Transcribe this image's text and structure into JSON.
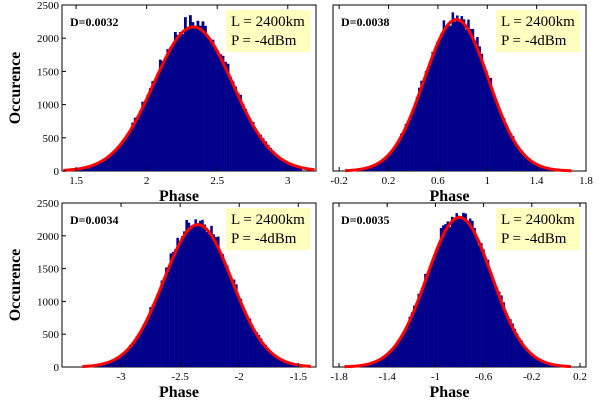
{
  "figure": {
    "bar_color": "#00008B",
    "fit_color": "#FF0000",
    "infobox_color": "#FFFFC0"
  },
  "chart_data": [
    {
      "type": "bar",
      "subtitle": "D=0.0032",
      "xlabel": "Phase",
      "ylabel": "Occurence",
      "info_lines": [
        "L = 2400km",
        "P = -4dBm"
      ],
      "xlim": [
        1.4,
        3.2
      ],
      "ylim": [
        0,
        2500
      ],
      "xticks": [
        1.5,
        2,
        2.5,
        3
      ],
      "xtick_labels": [
        "1.5",
        "2",
        "2.5",
        "3"
      ],
      "yticks": [
        0,
        500,
        1000,
        1500,
        2000,
        2500
      ],
      "ytick_labels": [
        "0",
        "500",
        "1000",
        "1500",
        "2000",
        "2500"
      ],
      "histogram": {
        "mean": 2.33,
        "sigma": 0.28,
        "peak": 2250,
        "range": [
          1.5,
          3.1
        ]
      },
      "fit": {
        "mean": 2.33,
        "sigma": 0.28,
        "peak": 2170
      }
    },
    {
      "type": "bar",
      "subtitle": "D=0.0038",
      "xlabel": "Phase",
      "ylabel": "",
      "info_lines": [
        "L = 2400km",
        "P = -4dBm"
      ],
      "xlim": [
        -0.25,
        1.8
      ],
      "ylim": [
        0,
        2500
      ],
      "xticks": [
        -0.2,
        0.2,
        0.6,
        1,
        1.4,
        1.8
      ],
      "xtick_labels": [
        "-0.2",
        "0.2",
        "0.6",
        "1",
        "1.4",
        "1.8"
      ],
      "yticks": [],
      "ytick_labels": [],
      "histogram": {
        "mean": 0.75,
        "sigma": 0.26,
        "peak": 2370,
        "range": [
          -0.05,
          1.58
        ]
      },
      "fit": {
        "mean": 0.75,
        "sigma": 0.26,
        "peak": 2280
      }
    },
    {
      "type": "bar",
      "subtitle": "D=0.0034",
      "xlabel": "Phase",
      "ylabel": "Occurence",
      "info_lines": [
        "L = 2400km",
        "P = -4dBm"
      ],
      "xlim": [
        -3.5,
        -1.35
      ],
      "ylim": [
        0,
        2500
      ],
      "xticks": [
        -3,
        -2.5,
        -2,
        -1.5
      ],
      "xtick_labels": [
        "-3",
        "-2.5",
        "-2",
        "-1.5"
      ],
      "yticks": [
        0,
        500,
        1000,
        1500,
        2000,
        2500
      ],
      "ytick_labels": [
        "0",
        "500",
        "1000",
        "1500",
        "2000",
        "2500"
      ],
      "histogram": {
        "mean": -2.35,
        "sigma": 0.29,
        "peak": 2260,
        "range": [
          -3.22,
          -1.5
        ]
      },
      "fit": {
        "mean": -2.35,
        "sigma": 0.29,
        "peak": 2170
      }
    },
    {
      "type": "bar",
      "subtitle": "D=0.0035",
      "xlabel": "Phase",
      "ylabel": "",
      "info_lines": [
        "L = 2400km",
        "P = -4dBm"
      ],
      "xlim": [
        -1.85,
        0.25
      ],
      "ylim": [
        0,
        2500
      ],
      "xticks": [
        -1.8,
        -1.4,
        -1,
        -0.6,
        -0.2,
        0.2
      ],
      "xtick_labels": [
        "-1.8",
        "-1.4",
        "-1",
        "-0.6",
        "-0.2",
        "0.2"
      ],
      "yticks": [],
      "ytick_labels": [],
      "histogram": {
        "mean": -0.8,
        "sigma": 0.27,
        "peak": 2360,
        "range": [
          -1.65,
          0.02
        ]
      },
      "fit": {
        "mean": -0.8,
        "sigma": 0.27,
        "peak": 2280
      }
    }
  ]
}
